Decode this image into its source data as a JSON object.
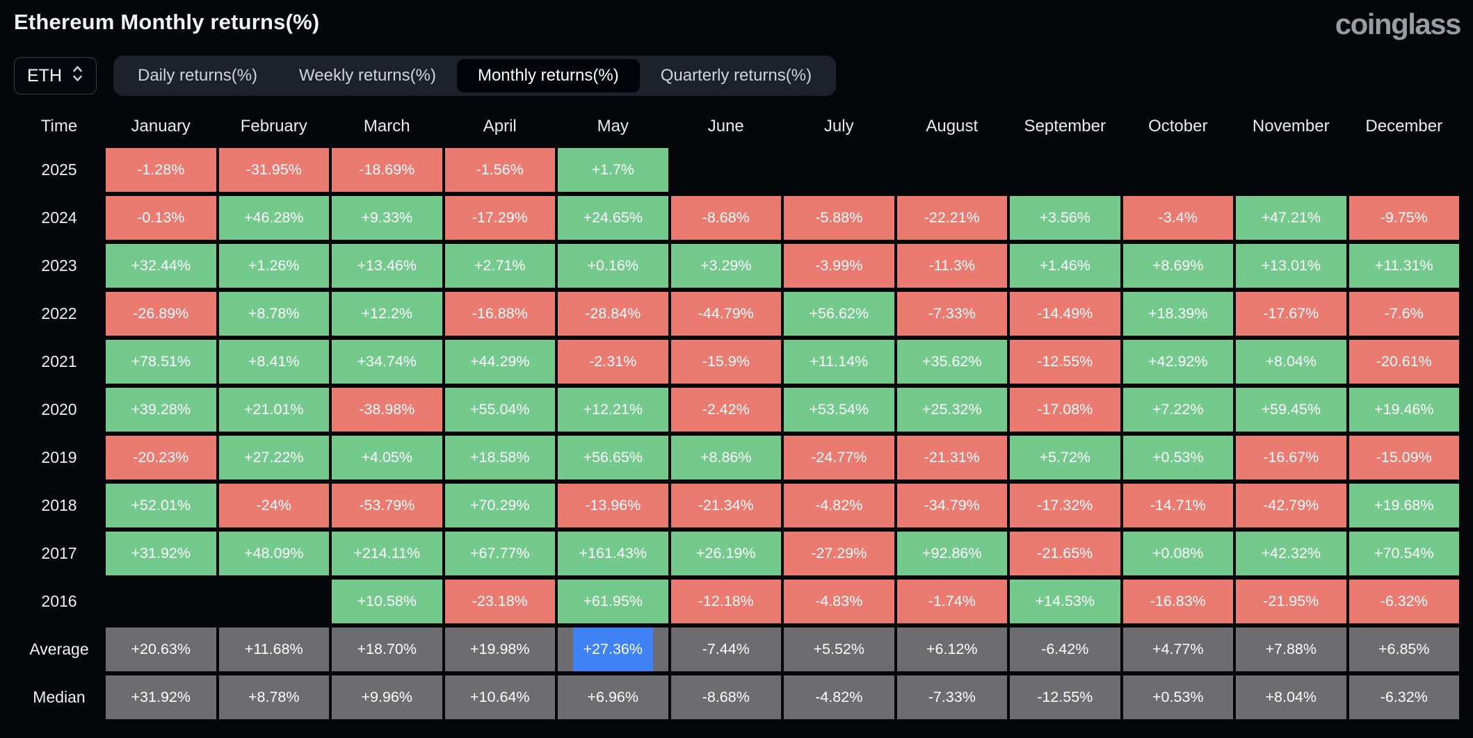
{
  "header": {
    "title": "Ethereum Monthly returns(%)",
    "logo_text": "coinglass"
  },
  "controls": {
    "symbol": "ETH",
    "tabs": [
      {
        "label": "Daily returns(%)",
        "active": false
      },
      {
        "label": "Weekly returns(%)",
        "active": false
      },
      {
        "label": "Monthly returns(%)",
        "active": true
      },
      {
        "label": "Quarterly returns(%)",
        "active": false
      }
    ]
  },
  "chart_data": {
    "type": "heatmap",
    "title": "Ethereum Monthly returns(%)",
    "columns": [
      "Time",
      "January",
      "February",
      "March",
      "April",
      "May",
      "June",
      "July",
      "August",
      "September",
      "October",
      "November",
      "December"
    ],
    "rows": [
      {
        "label": "2025",
        "kind": "year",
        "values": [
          "-1.28%",
          "-31.95%",
          "-18.69%",
          "-1.56%",
          "+1.7%",
          null,
          null,
          null,
          null,
          null,
          null,
          null
        ]
      },
      {
        "label": "2024",
        "kind": "year",
        "values": [
          "-0.13%",
          "+46.28%",
          "+9.33%",
          "-17.29%",
          "+24.65%",
          "-8.68%",
          "-5.88%",
          "-22.21%",
          "+3.56%",
          "-3.4%",
          "+47.21%",
          "-9.75%"
        ]
      },
      {
        "label": "2023",
        "kind": "year",
        "values": [
          "+32.44%",
          "+1.26%",
          "+13.46%",
          "+2.71%",
          "+0.16%",
          "+3.29%",
          "-3.99%",
          "-11.3%",
          "+1.46%",
          "+8.69%",
          "+13.01%",
          "+11.31%"
        ]
      },
      {
        "label": "2022",
        "kind": "year",
        "values": [
          "-26.89%",
          "+8.78%",
          "+12.2%",
          "-16.88%",
          "-28.84%",
          "-44.79%",
          "+56.62%",
          "-7.33%",
          "-14.49%",
          "+18.39%",
          "-17.67%",
          "-7.6%"
        ]
      },
      {
        "label": "2021",
        "kind": "year",
        "values": [
          "+78.51%",
          "+8.41%",
          "+34.74%",
          "+44.29%",
          "-2.31%",
          "-15.9%",
          "+11.14%",
          "+35.62%",
          "-12.55%",
          "+42.92%",
          "+8.04%",
          "-20.61%"
        ]
      },
      {
        "label": "2020",
        "kind": "year",
        "values": [
          "+39.28%",
          "+21.01%",
          "-38.98%",
          "+55.04%",
          "+12.21%",
          "-2.42%",
          "+53.54%",
          "+25.32%",
          "-17.08%",
          "+7.22%",
          "+59.45%",
          "+19.46%"
        ]
      },
      {
        "label": "2019",
        "kind": "year",
        "values": [
          "-20.23%",
          "+27.22%",
          "+4.05%",
          "+18.58%",
          "+56.65%",
          "+8.86%",
          "-24.77%",
          "-21.31%",
          "+5.72%",
          "+0.53%",
          "-16.67%",
          "-15.09%"
        ]
      },
      {
        "label": "2018",
        "kind": "year",
        "values": [
          "+52.01%",
          "-24%",
          "-53.79%",
          "+70.29%",
          "-13.96%",
          "-21.34%",
          "-4.82%",
          "-34.79%",
          "-17.32%",
          "-14.71%",
          "-42.79%",
          "+19.68%"
        ]
      },
      {
        "label": "2017",
        "kind": "year",
        "values": [
          "+31.92%",
          "+48.09%",
          "+214.11%",
          "+67.77%",
          "+161.43%",
          "+26.19%",
          "-27.29%",
          "+92.86%",
          "-21.65%",
          "+0.08%",
          "+42.32%",
          "+70.54%"
        ]
      },
      {
        "label": "2016",
        "kind": "year",
        "values": [
          null,
          null,
          "+10.58%",
          "-23.18%",
          "+61.95%",
          "-12.18%",
          "-4.83%",
          "-1.74%",
          "+14.53%",
          "-16.83%",
          "-21.95%",
          "-6.32%"
        ]
      },
      {
        "label": "Average",
        "kind": "stat",
        "values": [
          "+20.63%",
          "+11.68%",
          "+18.70%",
          "+19.98%",
          "+27.36%",
          "-7.44%",
          "+5.52%",
          "+6.12%",
          "-6.42%",
          "+4.77%",
          "+7.88%",
          "+6.85%"
        ]
      },
      {
        "label": "Median",
        "kind": "stat",
        "values": [
          "+31.92%",
          "+8.78%",
          "+9.96%",
          "+10.64%",
          "+6.96%",
          "-8.68%",
          "-4.82%",
          "-7.33%",
          "-12.55%",
          "+0.53%",
          "+8.04%",
          "-6.32%"
        ]
      }
    ],
    "highlight_cell": {
      "row": "Average",
      "column": "May",
      "value": "+27.36%"
    },
    "colors": {
      "positive": "#74c98d",
      "negative": "#eb7b71",
      "stat": "#6d6d70",
      "highlight": "#3e82f5",
      "background": "#05060a"
    },
    "legend_position": "none",
    "grid": false
  }
}
